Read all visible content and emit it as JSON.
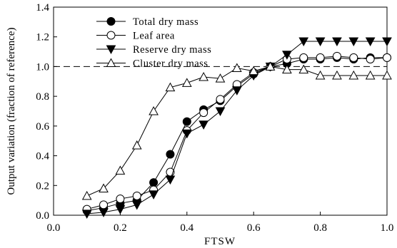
{
  "chart_data": {
    "type": "line",
    "title": "",
    "xlabel": "FTSW",
    "ylabel": "Output variation (fraction of reference)",
    "xlim": [
      0.0,
      1.0
    ],
    "ylim": [
      0.0,
      1.4
    ],
    "x_ticks": [
      0.0,
      0.2,
      0.4,
      0.6,
      0.8,
      1.0
    ],
    "x_tick_labels": [
      "0.0",
      "0.2",
      "0.4",
      "0.6",
      "0.8",
      "1.0"
    ],
    "y_ticks": [
      0.0,
      0.2,
      0.4,
      0.6,
      0.8,
      1.0,
      1.2,
      1.4
    ],
    "y_tick_labels": [
      "0.0",
      "0.2",
      "0.4",
      "0.6",
      "0.8",
      "1.0",
      "1.2",
      "1.4"
    ],
    "reference_line": {
      "y": 1.0,
      "style": "dashed"
    },
    "grid": false,
    "legend_position": "top-left",
    "x": [
      0.1,
      0.15,
      0.2,
      0.25,
      0.3,
      0.35,
      0.4,
      0.45,
      0.5,
      0.55,
      0.6,
      0.65,
      0.7,
      0.75,
      0.8,
      0.85,
      0.9,
      0.95,
      1.0
    ],
    "series": [
      {
        "name": "Total dry mass",
        "marker": "filled-circle",
        "values": [
          0.03,
          0.05,
          0.08,
          0.1,
          0.22,
          0.41,
          0.63,
          0.71,
          0.77,
          0.87,
          0.95,
          1.0,
          1.02,
          1.05,
          1.05,
          1.06,
          1.05,
          1.06,
          1.06
        ]
      },
      {
        "name": "Leaf area",
        "marker": "open-circle",
        "values": [
          0.04,
          0.07,
          0.11,
          0.13,
          0.17,
          0.29,
          0.57,
          0.69,
          0.78,
          0.88,
          0.96,
          1.0,
          1.05,
          1.06,
          1.06,
          1.07,
          1.06,
          1.05,
          1.06
        ]
      },
      {
        "name": "Reserve dry mass",
        "marker": "filled-triangle-down",
        "values": [
          0.01,
          0.02,
          0.04,
          0.07,
          0.14,
          0.24,
          0.55,
          0.61,
          0.7,
          0.84,
          0.94,
          1.0,
          1.08,
          1.17,
          1.17,
          1.17,
          1.17,
          1.17,
          1.17
        ]
      },
      {
        "name": "Cluster dry mass",
        "marker": "open-triangle-up",
        "values": [
          0.13,
          0.18,
          0.3,
          0.47,
          0.7,
          0.86,
          0.89,
          0.93,
          0.92,
          0.99,
          0.97,
          1.0,
          0.98,
          0.98,
          0.94,
          0.94,
          0.94,
          0.94,
          0.94
        ]
      }
    ]
  }
}
